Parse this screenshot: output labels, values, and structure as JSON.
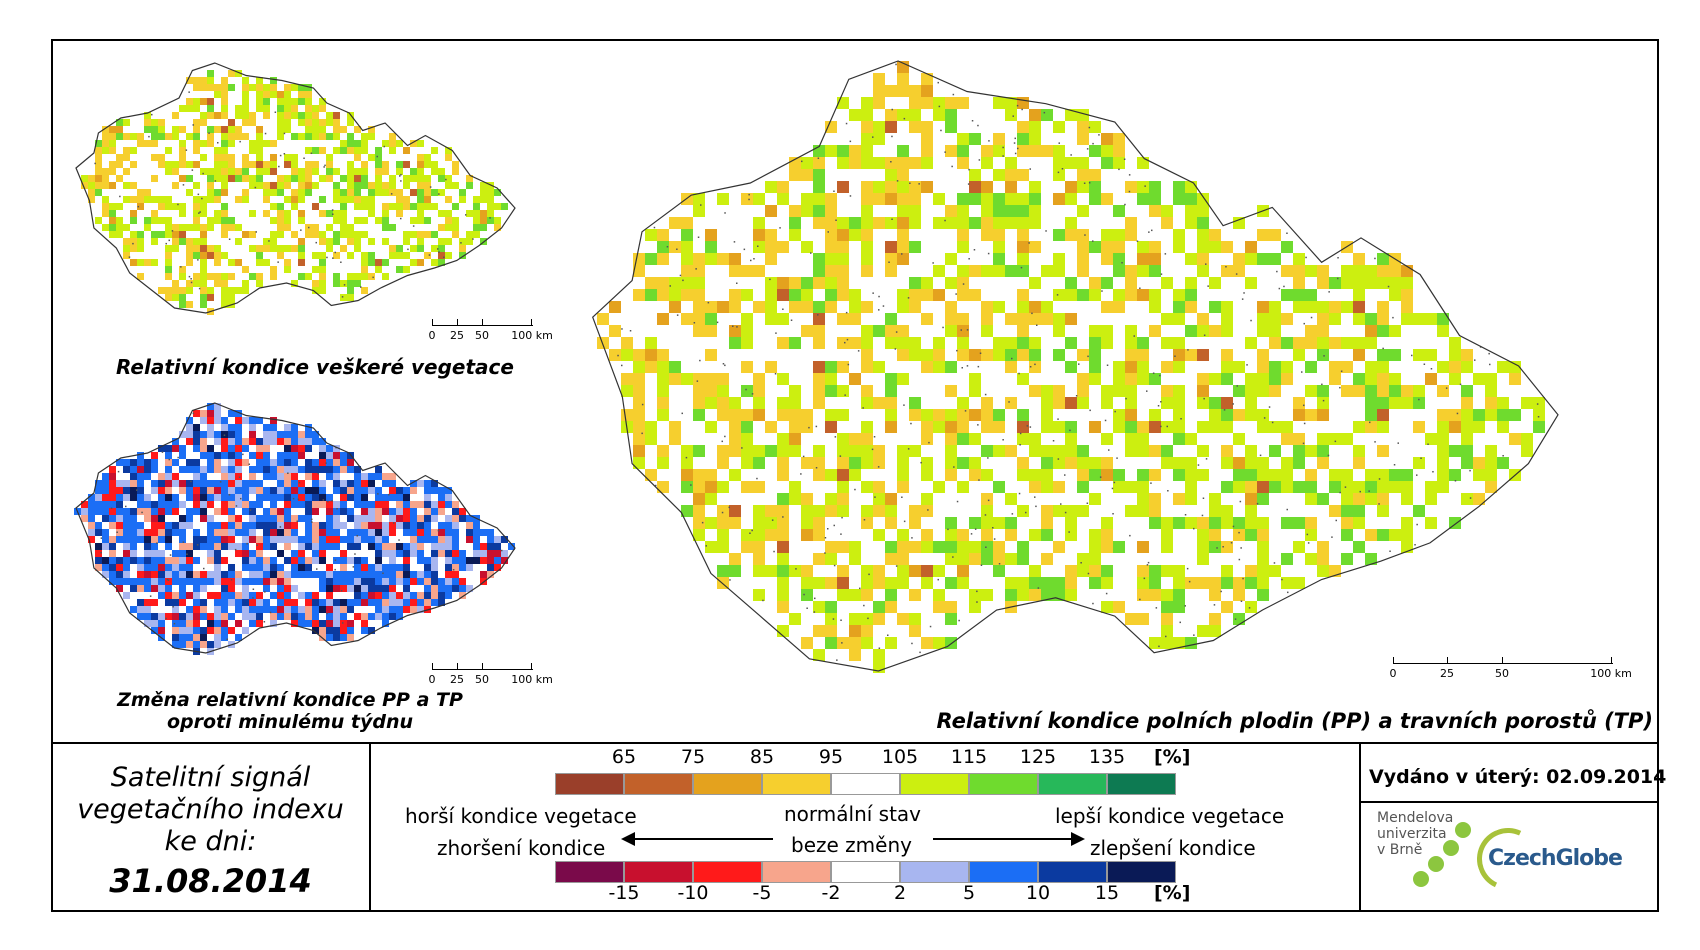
{
  "maps": {
    "main": {
      "caption": "Relativní kondice polních plodin (PP) a travních porostů (TP)",
      "scale": [
        "0",
        "25",
        "50",
        "100 km"
      ]
    },
    "top_left": {
      "caption": "Relativní kondice veškeré vegetace",
      "scale": [
        "0",
        "25",
        "50",
        "100 km"
      ]
    },
    "bottom_left": {
      "caption_line1": "Změna relativní kondice PP a TP",
      "caption_line2": "oproti minulému týdnu",
      "scale": [
        "0",
        "25",
        "50",
        "100 km"
      ]
    }
  },
  "signal": {
    "line1": "Satelitní signál",
    "line2": "vegetačního indexu",
    "line3": "ke dni:",
    "date": "31.08.2014"
  },
  "legend": {
    "condition": {
      "unit": "[%]",
      "ticks": [
        "65",
        "75",
        "85",
        "95",
        "105",
        "115",
        "125",
        "135"
      ],
      "colors": [
        "#9a3f2a",
        "#c2612a",
        "#e4a21e",
        "#f6cf2e",
        "#ffffff",
        "#ccef10",
        "#6fdb2e",
        "#27b85a",
        "#0d7a52"
      ]
    },
    "change": {
      "unit": "[%]",
      "ticks": [
        "-15",
        "-10",
        "-5",
        "-2",
        "2",
        "5",
        "10",
        "15"
      ],
      "colors": [
        "#7a0a4a",
        "#c8102e",
        "#ff1a1a",
        "#f7a58c",
        "#ffffff",
        "#a8b6f0",
        "#1b6ef5",
        "#0b3aa0",
        "#0a1a56"
      ]
    },
    "worse_condition": "horší kondice vegetace",
    "normal_state": "normální stav",
    "better_condition": "lepší kondice vegetace",
    "worsening": "zhoršení kondice",
    "no_change": "beze změny",
    "improvement": "zlepšení kondice"
  },
  "issued": "Vydáno v úterý: 02.09.2014",
  "logos": {
    "mendel_line1": "Mendelova",
    "mendel_line2": "univerzita",
    "mendel_line3": "v Brně",
    "czechglobe": "CzechGlobe"
  }
}
